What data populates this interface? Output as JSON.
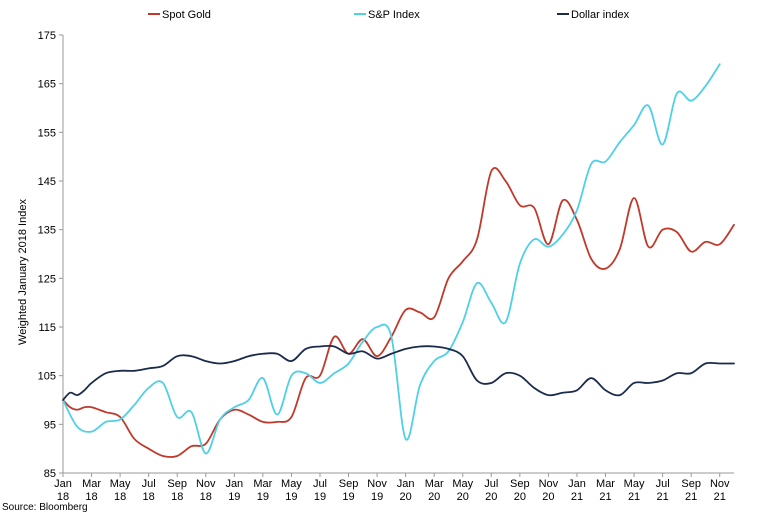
{
  "chart_data": {
    "type": "line",
    "ylabel": "Weighted January 2018 Index",
    "ylim": [
      85,
      175
    ],
    "yticks": [
      85,
      95,
      105,
      115,
      125,
      135,
      145,
      155,
      165,
      175
    ],
    "x_range": [
      0,
      47
    ],
    "xticks": [
      {
        "x": 0,
        "month": "Jan",
        "year": "18"
      },
      {
        "x": 2,
        "month": "Mar",
        "year": "18"
      },
      {
        "x": 4,
        "month": "May",
        "year": "18"
      },
      {
        "x": 6,
        "month": "Jul",
        "year": "18"
      },
      {
        "x": 8,
        "month": "Sep",
        "year": "18"
      },
      {
        "x": 10,
        "month": "Nov",
        "year": "18"
      },
      {
        "x": 12,
        "month": "Jan",
        "year": "19"
      },
      {
        "x": 14,
        "month": "Mar",
        "year": "19"
      },
      {
        "x": 16,
        "month": "May",
        "year": "19"
      },
      {
        "x": 18,
        "month": "Jul",
        "year": "19"
      },
      {
        "x": 20,
        "month": "Sep",
        "year": "19"
      },
      {
        "x": 22,
        "month": "Nov",
        "year": "19"
      },
      {
        "x": 24,
        "month": "Jan",
        "year": "20"
      },
      {
        "x": 26,
        "month": "Mar",
        "year": "20"
      },
      {
        "x": 28,
        "month": "May",
        "year": "20"
      },
      {
        "x": 30,
        "month": "Jul",
        "year": "20"
      },
      {
        "x": 32,
        "month": "Sep",
        "year": "20"
      },
      {
        "x": 34,
        "month": "Nov",
        "year": "20"
      },
      {
        "x": 36,
        "month": "Jan",
        "year": "21"
      },
      {
        "x": 38,
        "month": "Mar",
        "year": "21"
      },
      {
        "x": 40,
        "month": "May",
        "year": "21"
      },
      {
        "x": 42,
        "month": "Jul",
        "year": "21"
      },
      {
        "x": 44,
        "month": "Sep",
        "year": "21"
      },
      {
        "x": 46,
        "month": "Nov",
        "year": "21"
      }
    ],
    "legend_position": "top",
    "series": [
      {
        "name": "Spot Gold",
        "color": "#c0392b",
        "points": [
          [
            0,
            100
          ],
          [
            0.5,
            98.5
          ],
          [
            1,
            98
          ],
          [
            1.5,
            98.5
          ],
          [
            2,
            98.5
          ],
          [
            3,
            97.5
          ],
          [
            4,
            96.5
          ],
          [
            5,
            92
          ],
          [
            6,
            90
          ],
          [
            7,
            88.5
          ],
          [
            8,
            88.5
          ],
          [
            9,
            90.5
          ],
          [
            10,
            91
          ],
          [
            11,
            96
          ],
          [
            12,
            98
          ],
          [
            13,
            97
          ],
          [
            14,
            95.5
          ],
          [
            15,
            95.5
          ],
          [
            16,
            96.5
          ],
          [
            17,
            104.5
          ],
          [
            18,
            105
          ],
          [
            19,
            113
          ],
          [
            20,
            109.5
          ],
          [
            21,
            112.5
          ],
          [
            22,
            109
          ],
          [
            23,
            113
          ],
          [
            24,
            118.5
          ],
          [
            25,
            118
          ],
          [
            26,
            117
          ],
          [
            27,
            125
          ],
          [
            28,
            128.5
          ],
          [
            29,
            133
          ],
          [
            30,
            147
          ],
          [
            31,
            145
          ],
          [
            32,
            140
          ],
          [
            33,
            139.5
          ],
          [
            34,
            132
          ],
          [
            35,
            141
          ],
          [
            36,
            137
          ],
          [
            37,
            129
          ],
          [
            38,
            127
          ],
          [
            39,
            131
          ],
          [
            40,
            141.5
          ],
          [
            41,
            131.5
          ],
          [
            42,
            135
          ],
          [
            43,
            134.5
          ],
          [
            44,
            130.5
          ],
          [
            45,
            132.5
          ],
          [
            46,
            132
          ],
          [
            47,
            136
          ]
        ]
      },
      {
        "name": "S&P Index",
        "color": "#4fd0e8",
        "points": [
          [
            0,
            100
          ],
          [
            1,
            94.5
          ],
          [
            2,
            93.5
          ],
          [
            3,
            95.5
          ],
          [
            4,
            96
          ],
          [
            5,
            99
          ],
          [
            6,
            102.5
          ],
          [
            7,
            103.5
          ],
          [
            8,
            96.5
          ],
          [
            9,
            97.5
          ],
          [
            10,
            89
          ],
          [
            11,
            96
          ],
          [
            12,
            98.5
          ],
          [
            13,
            100
          ],
          [
            14,
            104.5
          ],
          [
            15,
            97
          ],
          [
            16,
            105
          ],
          [
            17,
            105.5
          ],
          [
            18,
            103.5
          ],
          [
            19,
            105.5
          ],
          [
            20,
            107.5
          ],
          [
            21,
            112
          ],
          [
            22,
            115
          ],
          [
            23,
            113
          ],
          [
            24,
            92
          ],
          [
            25,
            103
          ],
          [
            26,
            108
          ],
          [
            27,
            110
          ],
          [
            28,
            116
          ],
          [
            29,
            124
          ],
          [
            30,
            120
          ],
          [
            31,
            116
          ],
          [
            32,
            128
          ],
          [
            33,
            133
          ],
          [
            34,
            131.5
          ],
          [
            35,
            134
          ],
          [
            36,
            139
          ],
          [
            37,
            148.5
          ],
          [
            38,
            149
          ],
          [
            39,
            153
          ],
          [
            40,
            156.5
          ],
          [
            41,
            160.5
          ],
          [
            42,
            152.5
          ],
          [
            43,
            163
          ],
          [
            44,
            161.5
          ],
          [
            45,
            164.5
          ],
          [
            46,
            169
          ]
        ]
      },
      {
        "name": "Dollar index",
        "color": "#1a2b4c",
        "points": [
          [
            0,
            100
          ],
          [
            0.5,
            101.5
          ],
          [
            1,
            101
          ],
          [
            1.5,
            102
          ],
          [
            2,
            103.5
          ],
          [
            3,
            105.5
          ],
          [
            4,
            106
          ],
          [
            5,
            106
          ],
          [
            6,
            106.5
          ],
          [
            7,
            107
          ],
          [
            8,
            109
          ],
          [
            9,
            109
          ],
          [
            10,
            108
          ],
          [
            11,
            107.5
          ],
          [
            12,
            108
          ],
          [
            13,
            109
          ],
          [
            14,
            109.5
          ],
          [
            15,
            109.5
          ],
          [
            16,
            108
          ],
          [
            17,
            110.5
          ],
          [
            18,
            111
          ],
          [
            19,
            111
          ],
          [
            20,
            109.5
          ],
          [
            21,
            110
          ],
          [
            22,
            108.5
          ],
          [
            23,
            109.5
          ],
          [
            24,
            110.5
          ],
          [
            25,
            111
          ],
          [
            26,
            111
          ],
          [
            27,
            110.5
          ],
          [
            28,
            109
          ],
          [
            29,
            104
          ],
          [
            30,
            103.5
          ],
          [
            31,
            105.5
          ],
          [
            32,
            105
          ],
          [
            33,
            102.5
          ],
          [
            34,
            101
          ],
          [
            35,
            101.5
          ],
          [
            36,
            102
          ],
          [
            37,
            104.5
          ],
          [
            38,
            102
          ],
          [
            39,
            101
          ],
          [
            40,
            103.5
          ],
          [
            41,
            103.5
          ],
          [
            42,
            104
          ],
          [
            43,
            105.5
          ],
          [
            44,
            105.5
          ],
          [
            45,
            107.5
          ],
          [
            46,
            107.5
          ],
          [
            47,
            107.5
          ]
        ]
      }
    ]
  },
  "source": "Source: Bloomberg"
}
